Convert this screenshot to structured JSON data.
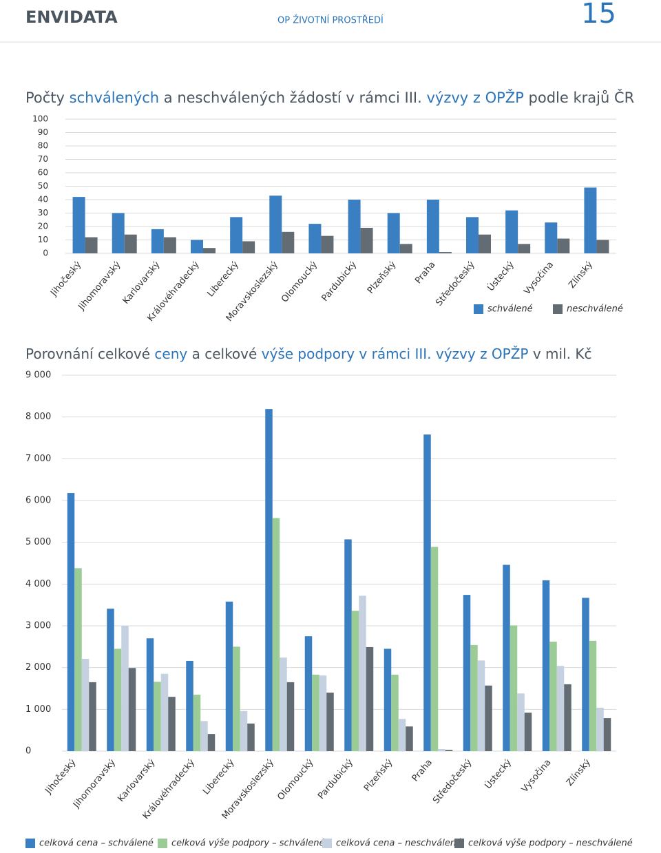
{
  "header": {
    "brand": "ENVIDATA",
    "section": "OP ŽIVOTNÍ PROSTŘEDÍ",
    "page_number": "15"
  },
  "chart_data": [
    {
      "type": "bar",
      "title": [
        "Počty ",
        "schválených",
        " a neschválených žádostí v rámci III. ",
        "výzvy z OPŽP",
        " podle krajů ČR"
      ],
      "title_highlight": [
        false,
        true,
        false,
        true,
        false
      ],
      "title_accent_color": "#2b74b8",
      "categories": [
        "Jihočeský",
        "Jihomoravský",
        "Karlovarský",
        "Královéhradecký",
        "Liberecký",
        "Moravskoslezský",
        "Olomoucký",
        "Pardubický",
        "Plzeňský",
        "Praha",
        "Středočeský",
        "Ústecký",
        "Vysočina",
        "Zlínský"
      ],
      "series": [
        {
          "name": "schválené",
          "color": "#3a7fc1",
          "values": [
            42,
            30,
            18,
            10,
            27,
            43,
            22,
            40,
            30,
            40,
            27,
            32,
            23,
            49
          ]
        },
        {
          "name": "neschválené",
          "color": "#646c73",
          "values": [
            12,
            14,
            12,
            4,
            9,
            16,
            13,
            19,
            7,
            1,
            14,
            7,
            11,
            10
          ]
        }
      ],
      "ylim": [
        0,
        100
      ],
      "yticks": [
        0,
        10,
        20,
        30,
        40,
        50,
        60,
        70,
        80,
        90,
        100
      ],
      "grid": true,
      "legend": "bottom-right"
    },
    {
      "type": "bar",
      "title": [
        "Porovnání celkové ",
        "ceny",
        " a celkové ",
        "výše podpory v rámci III. výzvy z OPŽP",
        " v mil. Kč"
      ],
      "title_highlight": [
        false,
        true,
        false,
        true,
        false
      ],
      "title_accent_color": "#2b74b8",
      "categories": [
        "Jihočeský",
        "Jihomoravský",
        "Karlovarský",
        "Královéhradecký",
        "Liberecký",
        "Moravskoslezský",
        "Olomoucký",
        "Pardubický",
        "Plzeňský",
        "Praha",
        "Středočeský",
        "Ústecký",
        "Vysočina",
        "Zlínský"
      ],
      "series": [
        {
          "name": "celková cena – schválené",
          "color": "#3a7fc1",
          "values": [
            6180,
            3410,
            2700,
            2160,
            3580,
            8190,
            2750,
            5070,
            2450,
            7580,
            3740,
            4460,
            4090,
            3670
          ]
        },
        {
          "name": "celková výše podpory – schválené",
          "color": "#9ccc95",
          "values": [
            4380,
            2450,
            1660,
            1350,
            2500,
            5580,
            1830,
            3360,
            1830,
            4890,
            2540,
            3010,
            2620,
            2640
          ]
        },
        {
          "name": "celková cena – neschválené",
          "color": "#c5d0e0",
          "values": [
            2210,
            3000,
            1850,
            720,
            960,
            2240,
            1810,
            3720,
            770,
            50,
            2170,
            1380,
            2040,
            1040
          ]
        },
        {
          "name": "celková výše podpory – neschválené",
          "color": "#646c73",
          "values": [
            1650,
            1990,
            1300,
            410,
            660,
            1650,
            1400,
            2490,
            590,
            30,
            1570,
            920,
            1600,
            790
          ]
        }
      ],
      "ylim": [
        0,
        9000
      ],
      "yticks": [
        0,
        {
          "value": 1000,
          "label": "1 000"
        },
        {
          "value": 2000,
          "label": "2 000"
        },
        {
          "value": 3000,
          "label": "3 000"
        },
        {
          "value": 4000,
          "label": "4 000"
        },
        {
          "value": 5000,
          "label": "5 000"
        },
        {
          "value": 6000,
          "label": "6 000"
        },
        {
          "value": 7000,
          "label": "7 000"
        },
        {
          "value": 8000,
          "label": "8 000"
        },
        {
          "value": 9000,
          "label": "9 000"
        }
      ],
      "grid": true,
      "legend": "bottom-left"
    }
  ]
}
